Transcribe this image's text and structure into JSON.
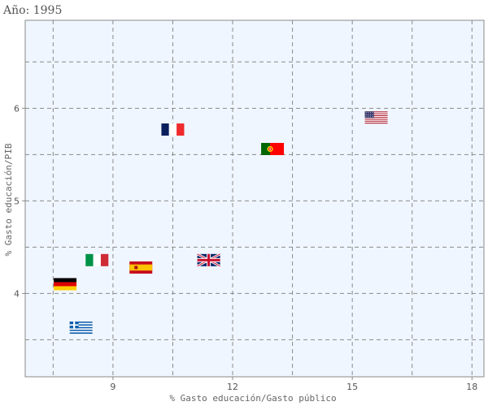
{
  "chart_data": {
    "type": "scatter",
    "title": "Año: 1995",
    "xlabel": "% Gasto educación/Gasto público",
    "ylabel": "% Gasto educación/PIB",
    "xlim": [
      6.8,
      18.3
    ],
    "ylim": [
      3.1,
      6.95
    ],
    "xticks": [
      9,
      12,
      15,
      18
    ],
    "yticks": [
      4,
      5,
      6
    ],
    "xgrid": [
      7.5,
      9,
      10.5,
      12,
      13.5,
      15,
      16.5,
      18
    ],
    "ygrid": [
      3.5,
      4,
      4.5,
      5,
      5.5,
      6,
      6.5
    ],
    "grid": true,
    "point_style": "country-flag",
    "points": [
      {
        "flag": "germany-flag",
        "x": 7.8,
        "y": 4.1
      },
      {
        "flag": "greece-flag",
        "x": 8.2,
        "y": 3.63
      },
      {
        "flag": "italy-flag",
        "x": 8.6,
        "y": 4.36
      },
      {
        "flag": "spain-flag",
        "x": 9.7,
        "y": 4.28
      },
      {
        "flag": "france-flag",
        "x": 10.5,
        "y": 5.77
      },
      {
        "flag": "uk-flag",
        "x": 11.4,
        "y": 4.36
      },
      {
        "flag": "portugal-flag",
        "x": 13.0,
        "y": 5.56
      },
      {
        "flag": "usa-flag",
        "x": 15.6,
        "y": 5.9
      }
    ]
  }
}
